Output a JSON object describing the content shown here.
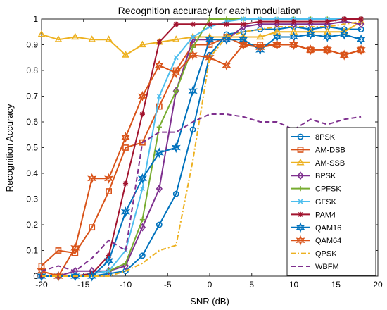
{
  "chart_data": {
    "type": "line",
    "title": "Recognition accuracy for each modulation",
    "xlabel": "SNR (dB)",
    "ylabel": "Recognition Accuracy",
    "xlim": [
      -20,
      20
    ],
    "ylim": [
      0,
      1
    ],
    "x_ticks": [
      "-20",
      "-15",
      "-10",
      "-5",
      "0",
      "5",
      "10",
      "15",
      "20"
    ],
    "y_ticks": [
      "0",
      "0.1",
      "0.2",
      "0.3",
      "0.4",
      "0.5",
      "0.6",
      "0.7",
      "0.8",
      "0.9",
      "1"
    ],
    "grid": false,
    "legend_position": "lower-right",
    "x": [
      -20,
      -18,
      -16,
      -14,
      -12,
      -10,
      -8,
      -6,
      -4,
      -2,
      0,
      2,
      4,
      6,
      8,
      10,
      12,
      14,
      16,
      18
    ],
    "series": [
      {
        "name": "8PSK",
        "color": "#0072BD",
        "marker": "circle",
        "dash": "solid",
        "values": [
          0.0,
          0.0,
          0.0,
          0.0,
          0.01,
          0.02,
          0.08,
          0.2,
          0.32,
          0.57,
          0.86,
          0.94,
          0.95,
          0.96,
          0.96,
          0.97,
          0.96,
          0.97,
          0.96,
          0.96
        ]
      },
      {
        "name": "AM-DSB",
        "color": "#D95319",
        "marker": "square",
        "dash": "solid",
        "values": [
          0.04,
          0.1,
          0.09,
          0.19,
          0.33,
          0.5,
          0.52,
          0.66,
          0.8,
          0.9,
          0.9,
          0.93,
          0.9,
          0.9,
          0.9,
          0.9,
          0.88,
          0.88,
          0.86,
          0.88
        ]
      },
      {
        "name": "AM-SSB",
        "color": "#EDB120",
        "marker": "triangle",
        "dash": "solid",
        "values": [
          0.94,
          0.92,
          0.93,
          0.92,
          0.92,
          0.86,
          0.9,
          0.91,
          0.92,
          0.93,
          0.93,
          0.93,
          0.93,
          0.93,
          0.95,
          0.95,
          0.95,
          0.95,
          0.95,
          0.99
        ]
      },
      {
        "name": "BPSK",
        "color": "#7E2F8E",
        "marker": "diamond",
        "dash": "solid",
        "values": [
          0.0,
          0.0,
          0.02,
          0.02,
          0.02,
          0.04,
          0.19,
          0.34,
          0.72,
          0.92,
          0.92,
          0.92,
          0.97,
          0.98,
          0.98,
          0.98,
          0.98,
          0.98,
          0.99,
          0.98
        ]
      },
      {
        "name": "CPFSK",
        "color": "#77AC30",
        "marker": "plus",
        "dash": "solid",
        "values": [
          0.0,
          0.0,
          0.0,
          0.01,
          0.02,
          0.05,
          0.22,
          0.58,
          0.72,
          0.89,
          1.0,
          1.0,
          1.0,
          1.0,
          1.0,
          1.0,
          1.0,
          1.0,
          1.0,
          1.0
        ]
      },
      {
        "name": "GFSK",
        "color": "#4DBEEE",
        "marker": "x",
        "dash": "solid",
        "values": [
          0.0,
          0.0,
          0.0,
          0.01,
          0.02,
          0.1,
          0.34,
          0.7,
          0.85,
          0.93,
          0.97,
          0.99,
          1.0,
          1.0,
          1.0,
          1.0,
          1.0,
          1.0,
          1.0,
          1.0
        ]
      },
      {
        "name": "PAM4",
        "color": "#A2142F",
        "marker": "asterisk",
        "dash": "solid",
        "values": [
          0.0,
          0.0,
          0.0,
          0.01,
          0.08,
          0.36,
          0.63,
          0.91,
          0.98,
          0.98,
          0.98,
          0.98,
          0.98,
          0.99,
          0.99,
          0.99,
          0.99,
          0.99,
          1.0,
          1.0
        ]
      },
      {
        "name": "QAM16",
        "color": "#0072BD",
        "marker": "hexagram",
        "dash": "solid",
        "values": [
          0.0,
          0.0,
          0.0,
          0.0,
          0.06,
          0.25,
          0.38,
          0.48,
          0.5,
          0.72,
          0.92,
          0.92,
          0.92,
          0.88,
          0.93,
          0.93,
          0.94,
          0.93,
          0.94,
          0.92
        ]
      },
      {
        "name": "QAM64",
        "color": "#D95319",
        "marker": "hexagram",
        "dash": "solid",
        "values": [
          0.02,
          0.0,
          0.11,
          0.38,
          0.38,
          0.54,
          0.7,
          0.82,
          0.79,
          0.86,
          0.85,
          0.82,
          0.9,
          0.89,
          0.9,
          0.9,
          0.88,
          0.88,
          0.86,
          0.88
        ]
      },
      {
        "name": "QPSK",
        "color": "#EDB120",
        "marker": "none",
        "dash": "dashdot",
        "values": [
          0.0,
          0.0,
          0.0,
          0.0,
          0.0,
          0.02,
          0.05,
          0.1,
          0.12,
          0.45,
          0.85,
          0.93,
          0.95,
          0.96,
          0.97,
          0.97,
          0.97,
          0.97,
          0.98,
          0.99
        ]
      },
      {
        "name": "WBFM",
        "color": "#7E2F8E",
        "marker": "none",
        "dash": "dashed",
        "values": [
          0.02,
          0.04,
          0.02,
          0.07,
          0.14,
          0.1,
          0.52,
          0.56,
          0.56,
          0.6,
          0.63,
          0.63,
          0.62,
          0.6,
          0.6,
          0.57,
          0.61,
          0.59,
          0.61,
          0.62
        ]
      }
    ]
  }
}
